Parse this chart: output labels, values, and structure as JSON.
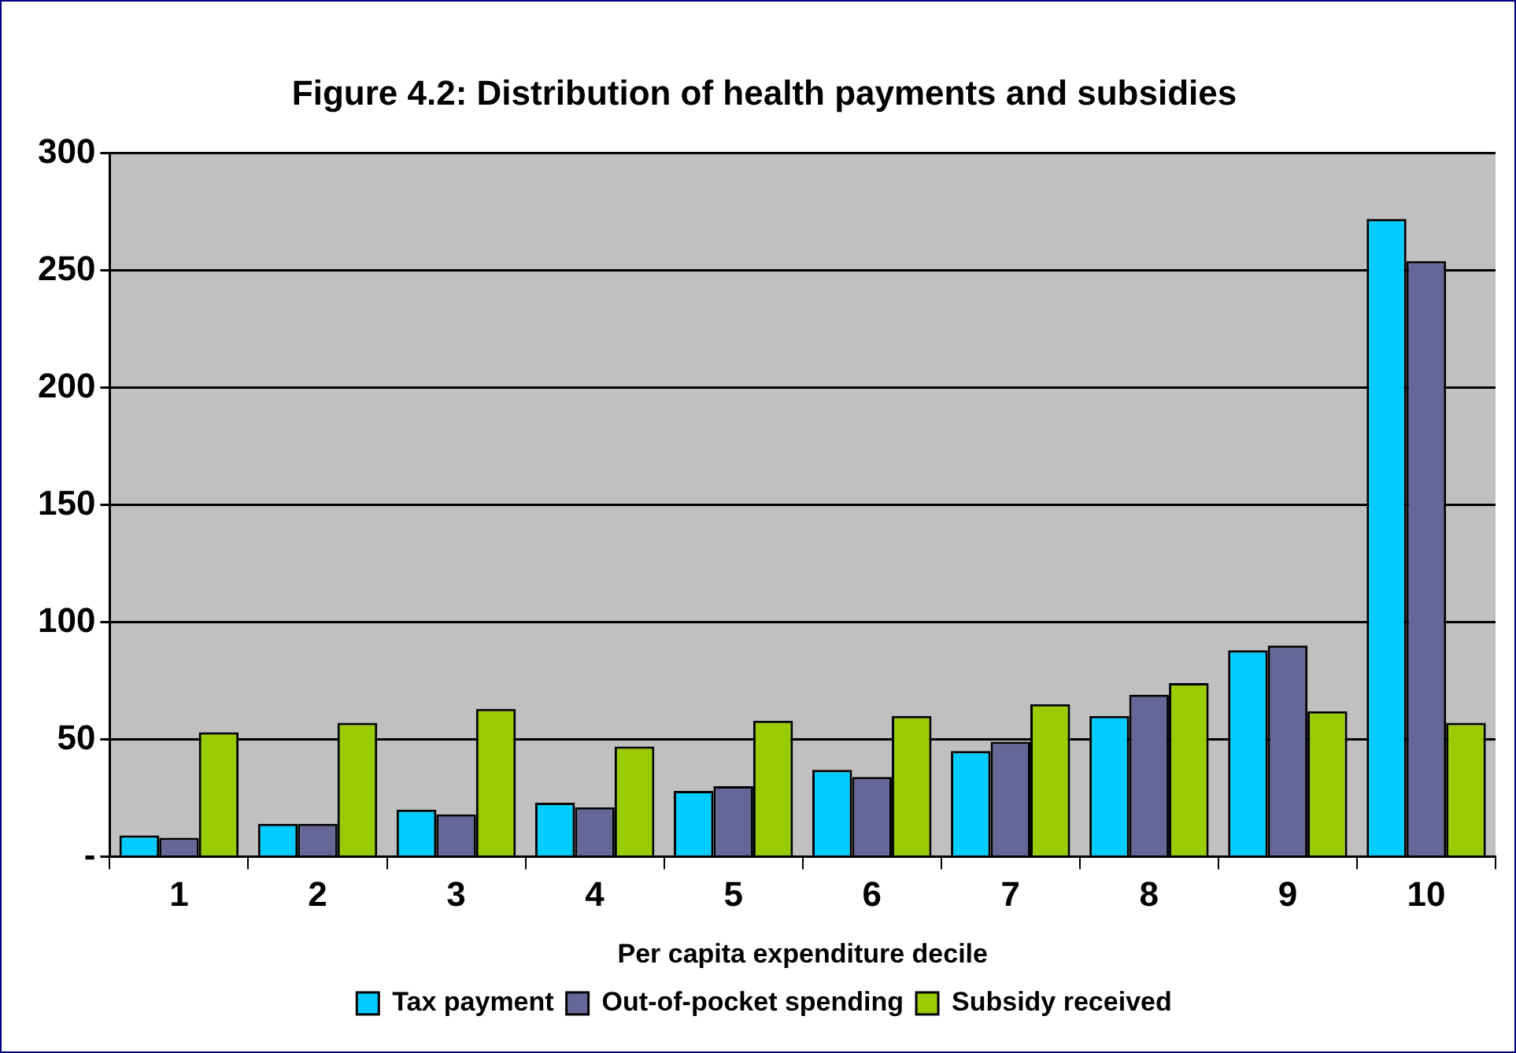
{
  "chart_data": {
    "type": "bar",
    "title": "Figure 4.2: Distribution of health payments and subsidies",
    "xlabel": "Per capita expenditure decile",
    "categories": [
      "1",
      "2",
      "3",
      "4",
      "5",
      "6",
      "7",
      "8",
      "9",
      "10"
    ],
    "series": [
      {
        "name": "Tax payment",
        "color": "#00ccff",
        "values": [
          9,
          14,
          20,
          23,
          28,
          37,
          45,
          60,
          88,
          272
        ]
      },
      {
        "name": "Out-of-pocket spending",
        "color": "#666699",
        "values": [
          8,
          14,
          18,
          21,
          30,
          34,
          49,
          69,
          90,
          254
        ]
      },
      {
        "name": "Subsidy received",
        "color": "#99cc00",
        "values": [
          53,
          57,
          63,
          47,
          58,
          60,
          65,
          74,
          62,
          57
        ]
      }
    ],
    "ylim": [
      0,
      300
    ],
    "yticks": [
      {
        "value": 0,
        "label": "-"
      },
      50,
      100,
      150,
      200,
      250,
      300
    ],
    "grid": "y",
    "legend": "bottom"
  }
}
